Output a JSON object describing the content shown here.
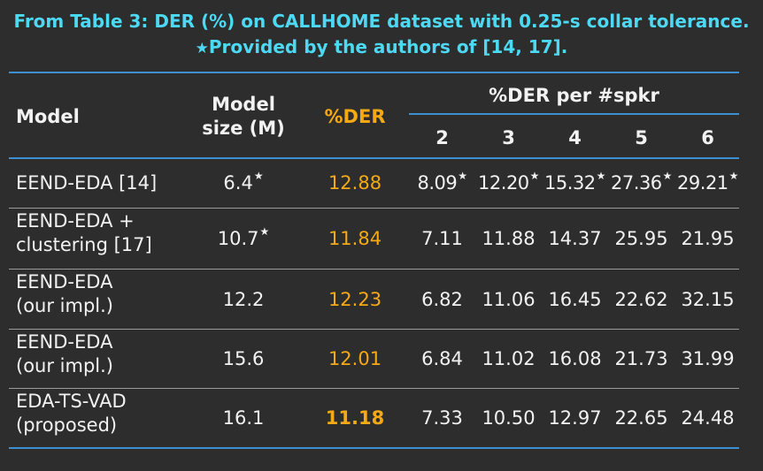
{
  "caption": {
    "line1": "From Table 3: DER (%) on CALLHOME dataset with 0.25-s collar tolerance.",
    "line2_star": "★",
    "line2": "Provided by the authors of [14, 17]."
  },
  "header": {
    "model": "Model",
    "size_l1": "Model",
    "size_l2": "size (M)",
    "der": "%DER",
    "per_spkr": "%DER per #spkr",
    "spk": [
      "2",
      "3",
      "4",
      "5",
      "6"
    ]
  },
  "star_mark": "★",
  "rows": [
    {
      "model_l1": "EEND-EDA [14]",
      "model_l2": "",
      "size": "6.4",
      "der": "12.88",
      "per": [
        "8.09",
        "12.20",
        "15.32",
        "27.36",
        "29.21"
      ]
    },
    {
      "model_l1": "EEND-EDA +",
      "model_l2": "clustering [17]",
      "size": "10.7",
      "der": "11.84",
      "per": [
        "7.11",
        "11.88",
        "14.37",
        "25.95",
        "21.95"
      ]
    },
    {
      "model_l1": "EEND-EDA",
      "model_l2": "(our impl.)",
      "size": "12.2",
      "der": "12.23",
      "per": [
        "6.82",
        "11.06",
        "16.45",
        "22.62",
        "32.15"
      ]
    },
    {
      "model_l1": "EEND-EDA",
      "model_l2": "(our impl.)",
      "size": "15.6",
      "der": "12.01",
      "per": [
        "6.84",
        "11.02",
        "16.08",
        "21.73",
        "31.99"
      ]
    },
    {
      "model_l1": "EDA-TS-VAD",
      "model_l2": "(proposed)",
      "size": "16.1",
      "der": "11.18",
      "per": [
        "7.33",
        "10.50",
        "12.97",
        "22.65",
        "24.48"
      ]
    }
  ],
  "colors": {
    "title": "#4dd9f3",
    "der": "#f5a914",
    "rule": "#3d8fd0",
    "background": "#2d2d2d"
  }
}
